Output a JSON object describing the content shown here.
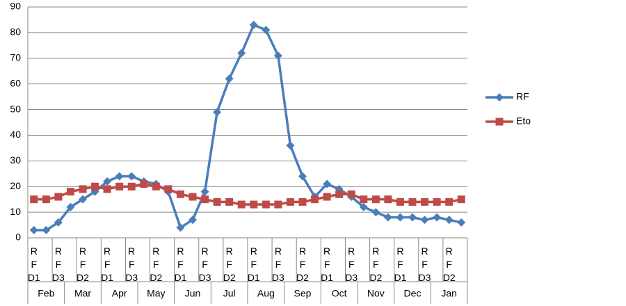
{
  "chart_data": {
    "type": "line",
    "categories": [
      "RF D1",
      null,
      "RF D3",
      null,
      "RF D2",
      null,
      "RF D1",
      null,
      "RF D3",
      null,
      "RF D2",
      null,
      "RF D1",
      null,
      "RF D3",
      null,
      "RF D2",
      null,
      "RF D1",
      null,
      "RF D3",
      null,
      "RF D2",
      null,
      "RF D1",
      null,
      "RF D3",
      null,
      "RF D2",
      null,
      "RF D1",
      null,
      "RF D3",
      null,
      "RF D2",
      null
    ],
    "groups": [
      "Feb",
      "Mar",
      "Apr",
      "May",
      "Jun",
      "Jul",
      "Aug",
      "Sep",
      "Oct",
      "Nov",
      "Dec",
      "Jan"
    ],
    "series": [
      {
        "name": "RF",
        "color": "#4a7ebb",
        "marker": "diamond",
        "values": [
          3,
          3,
          6,
          12,
          15,
          18,
          22,
          24,
          24,
          22,
          21,
          18,
          4,
          7,
          18,
          49,
          62,
          72,
          83,
          81,
          71,
          36,
          24,
          16,
          21,
          19,
          16,
          12,
          10,
          8,
          8,
          8,
          7,
          8,
          7,
          6
        ]
      },
      {
        "name": "Eto",
        "color": "#be4b48",
        "marker": "square",
        "values": [
          15,
          15,
          16,
          18,
          19,
          20,
          19,
          20,
          20,
          21,
          20,
          19,
          17,
          16,
          15,
          14,
          14,
          13,
          13,
          13,
          13,
          14,
          14,
          15,
          16,
          17,
          17,
          15,
          15,
          15,
          14,
          14,
          14,
          14,
          14,
          15
        ]
      }
    ],
    "ylim": [
      0,
      90
    ],
    "yticks": [
      0,
      10,
      20,
      30,
      40,
      50,
      60,
      70,
      80,
      90
    ],
    "grid": true,
    "legend": "right"
  }
}
